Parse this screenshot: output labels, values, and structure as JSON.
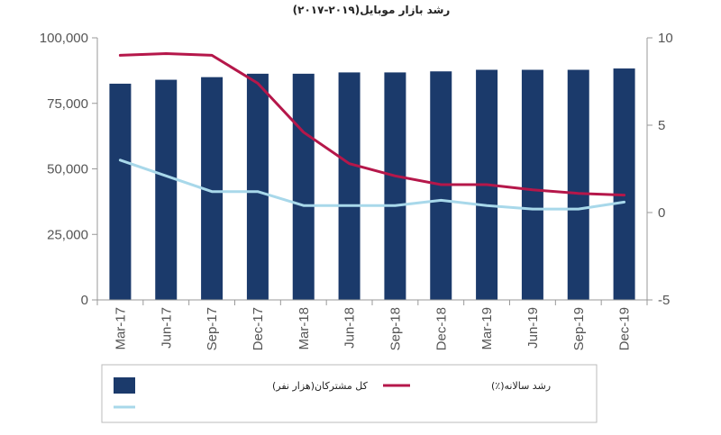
{
  "chart_data": {
    "type": "bar",
    "title": "رشد بازار موبایل(۲۰۱۹-۲۰۱۷)",
    "categories": [
      "Mar-17",
      "Jun-17",
      "Sep-17",
      "Dec-17",
      "Mar-18",
      "Jun-18",
      "Sep-18",
      "Dec-18",
      "Mar-19",
      "Jun-19",
      "Sep-19",
      "Dec-19"
    ],
    "series": [
      {
        "name": "کل مشترکان(هزار نفر)",
        "type": "bar",
        "axis": "left",
        "color": "#1b3a6b",
        "values": [
          82500,
          84000,
          85000,
          86300,
          86300,
          86800,
          86800,
          87200,
          87800,
          87800,
          87800,
          88300
        ]
      },
      {
        "name": "رشد سالانه(٪)",
        "type": "line",
        "axis": "right",
        "color": "#b5174a",
        "values": [
          9.0,
          9.1,
          9.0,
          7.4,
          4.6,
          2.8,
          2.1,
          1.6,
          1.6,
          1.3,
          1.1,
          1.0
        ]
      },
      {
        "name": "",
        "type": "line",
        "axis": "right",
        "color": "#a8d8ea",
        "values": [
          3.0,
          2.1,
          1.2,
          1.2,
          0.4,
          0.4,
          0.4,
          0.7,
          0.4,
          0.2,
          0.2,
          0.6
        ]
      }
    ],
    "y_left": {
      "ylim": [
        0,
        100000
      ],
      "ticks": [
        "0",
        "25,000",
        "50,000",
        "75,000",
        "100,000"
      ],
      "tick_values": [
        0,
        25000,
        50000,
        75000,
        100000
      ]
    },
    "y_right": {
      "ylim": [
        -5,
        10
      ],
      "ticks": [
        "-5",
        "0",
        "5",
        "10"
      ],
      "tick_values": [
        -5,
        0,
        5,
        10
      ]
    },
    "grid": false,
    "legend_position": "bottom"
  }
}
